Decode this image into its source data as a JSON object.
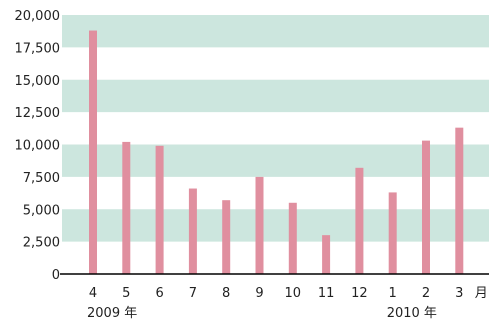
{
  "chart_data": {
    "type": "bar",
    "title": "",
    "xlabel": "",
    "ylabel": "",
    "categories": [
      "4",
      "5",
      "6",
      "7",
      "8",
      "9",
      "10",
      "11",
      "12",
      "1",
      "2",
      "3"
    ],
    "values": [
      18800,
      10200,
      9900,
      6600,
      5700,
      7500,
      5500,
      3000,
      8200,
      6300,
      10300,
      11300
    ],
    "ylim": [
      0,
      20000
    ],
    "yticks": [
      0,
      2500,
      5000,
      7500,
      10000,
      12500,
      15000,
      17500,
      20000
    ],
    "ytick_labels": [
      "0",
      "2,500",
      "5,000",
      "7,500",
      "10,000",
      "12,500",
      "15,000",
      "17,500",
      "20,000"
    ],
    "x_unit_label": "月",
    "year_labels": [
      {
        "text": "2009 年",
        "category": "4"
      },
      {
        "text": "2010 年",
        "category": "1"
      }
    ],
    "grid": "alternating-bands",
    "legend": "none",
    "colors": {
      "bar": "#e08f9f",
      "band": "#cce6de",
      "axis": "#000000"
    }
  }
}
